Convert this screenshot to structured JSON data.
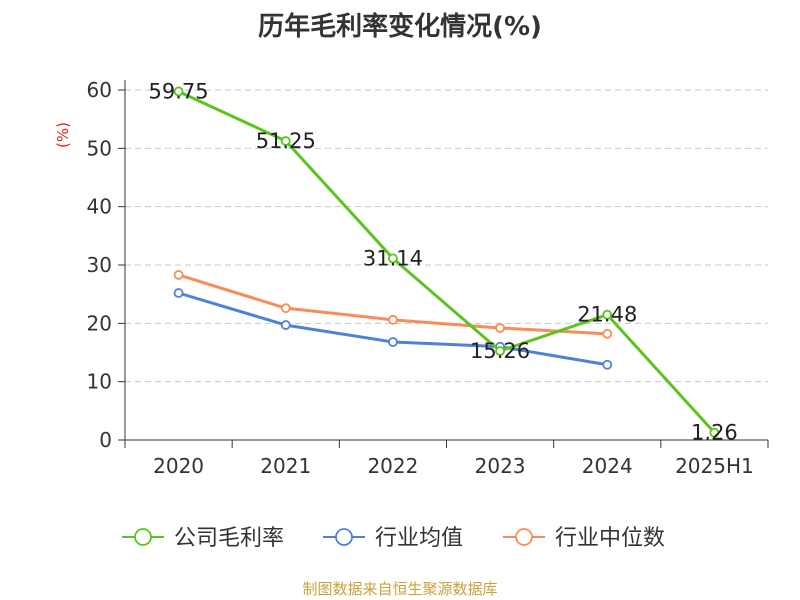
{
  "chart_data": {
    "type": "line",
    "title": "历年毛利率变化情况(%)",
    "ylabel": "(%)",
    "xlabel": "",
    "categories": [
      "2020",
      "2021",
      "2022",
      "2023",
      "2024",
      "2025H1"
    ],
    "ylim": [
      0,
      60
    ],
    "yticks": [
      0,
      10,
      20,
      30,
      40,
      50,
      60
    ],
    "grid": "horizontal-dashed",
    "legend_position": "bottom",
    "series": [
      {
        "name": "公司毛利率",
        "color": "#5cc41e",
        "values": [
          59.75,
          51.25,
          31.14,
          15.26,
          21.48,
          1.26
        ],
        "labels": [
          "59.75",
          "51.25",
          "31.14",
          "15.26",
          "21.48",
          "1.26"
        ]
      },
      {
        "name": "行业均值",
        "color": "#4f81d9",
        "values": [
          25.2,
          19.7,
          16.8,
          16.0,
          12.9,
          null
        ]
      },
      {
        "name": "行业中位数",
        "color": "#f58d5c",
        "values": [
          28.3,
          22.6,
          20.6,
          19.2,
          18.2,
          null
        ]
      }
    ]
  },
  "source": "制图数据来自恒生聚源数据库"
}
